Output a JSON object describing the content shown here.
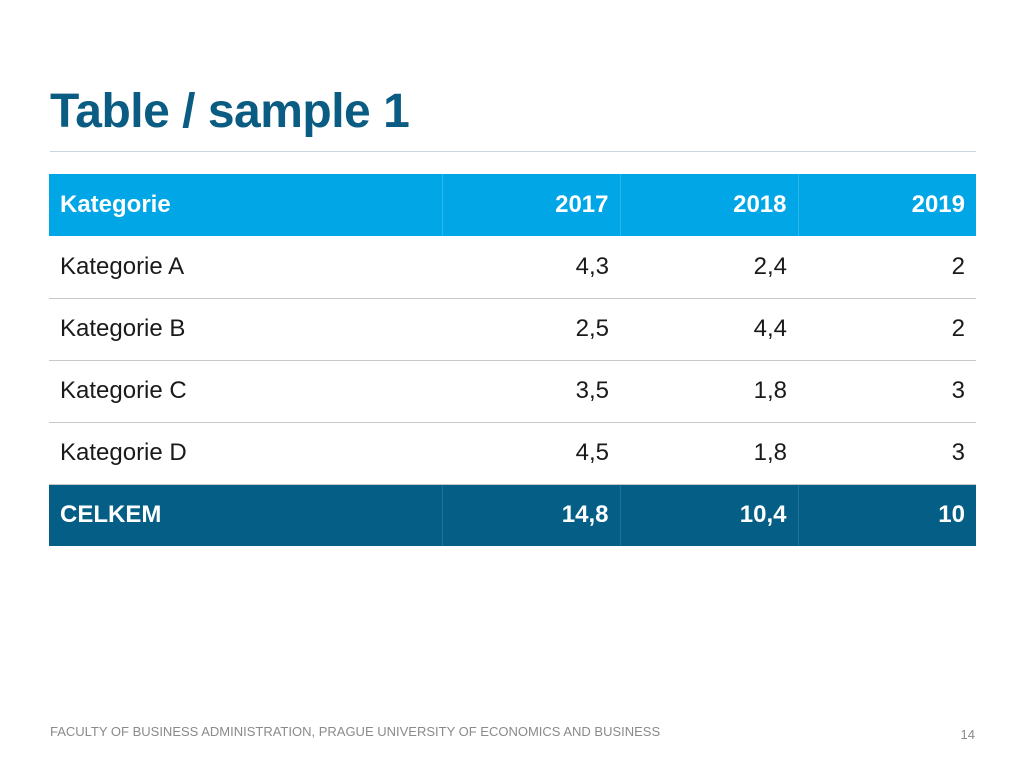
{
  "slide": {
    "title": "Table / sample 1",
    "footer": "FACULTY OF BUSINESS ADMINISTRATION, PRAGUE UNIVERSITY OF ECONOMICS AND BUSINESS",
    "page_number": "14"
  },
  "table": {
    "headers": [
      "Kategorie",
      "2017",
      "2018",
      "2019"
    ],
    "rows": [
      [
        "Kategorie A",
        "4,3",
        "2,4",
        "2"
      ],
      [
        "Kategorie B",
        "2,5",
        "4,4",
        "2"
      ],
      [
        "Kategorie C",
        "3,5",
        "1,8",
        "3"
      ],
      [
        "Kategorie D",
        "4,5",
        "1,8",
        "3"
      ]
    ],
    "total": [
      "CELKEM",
      "14,8",
      "10,4",
      "10"
    ]
  },
  "colors": {
    "title": "#0b5c82",
    "header_background": "#00a6e6",
    "total_background": "#045e86"
  }
}
